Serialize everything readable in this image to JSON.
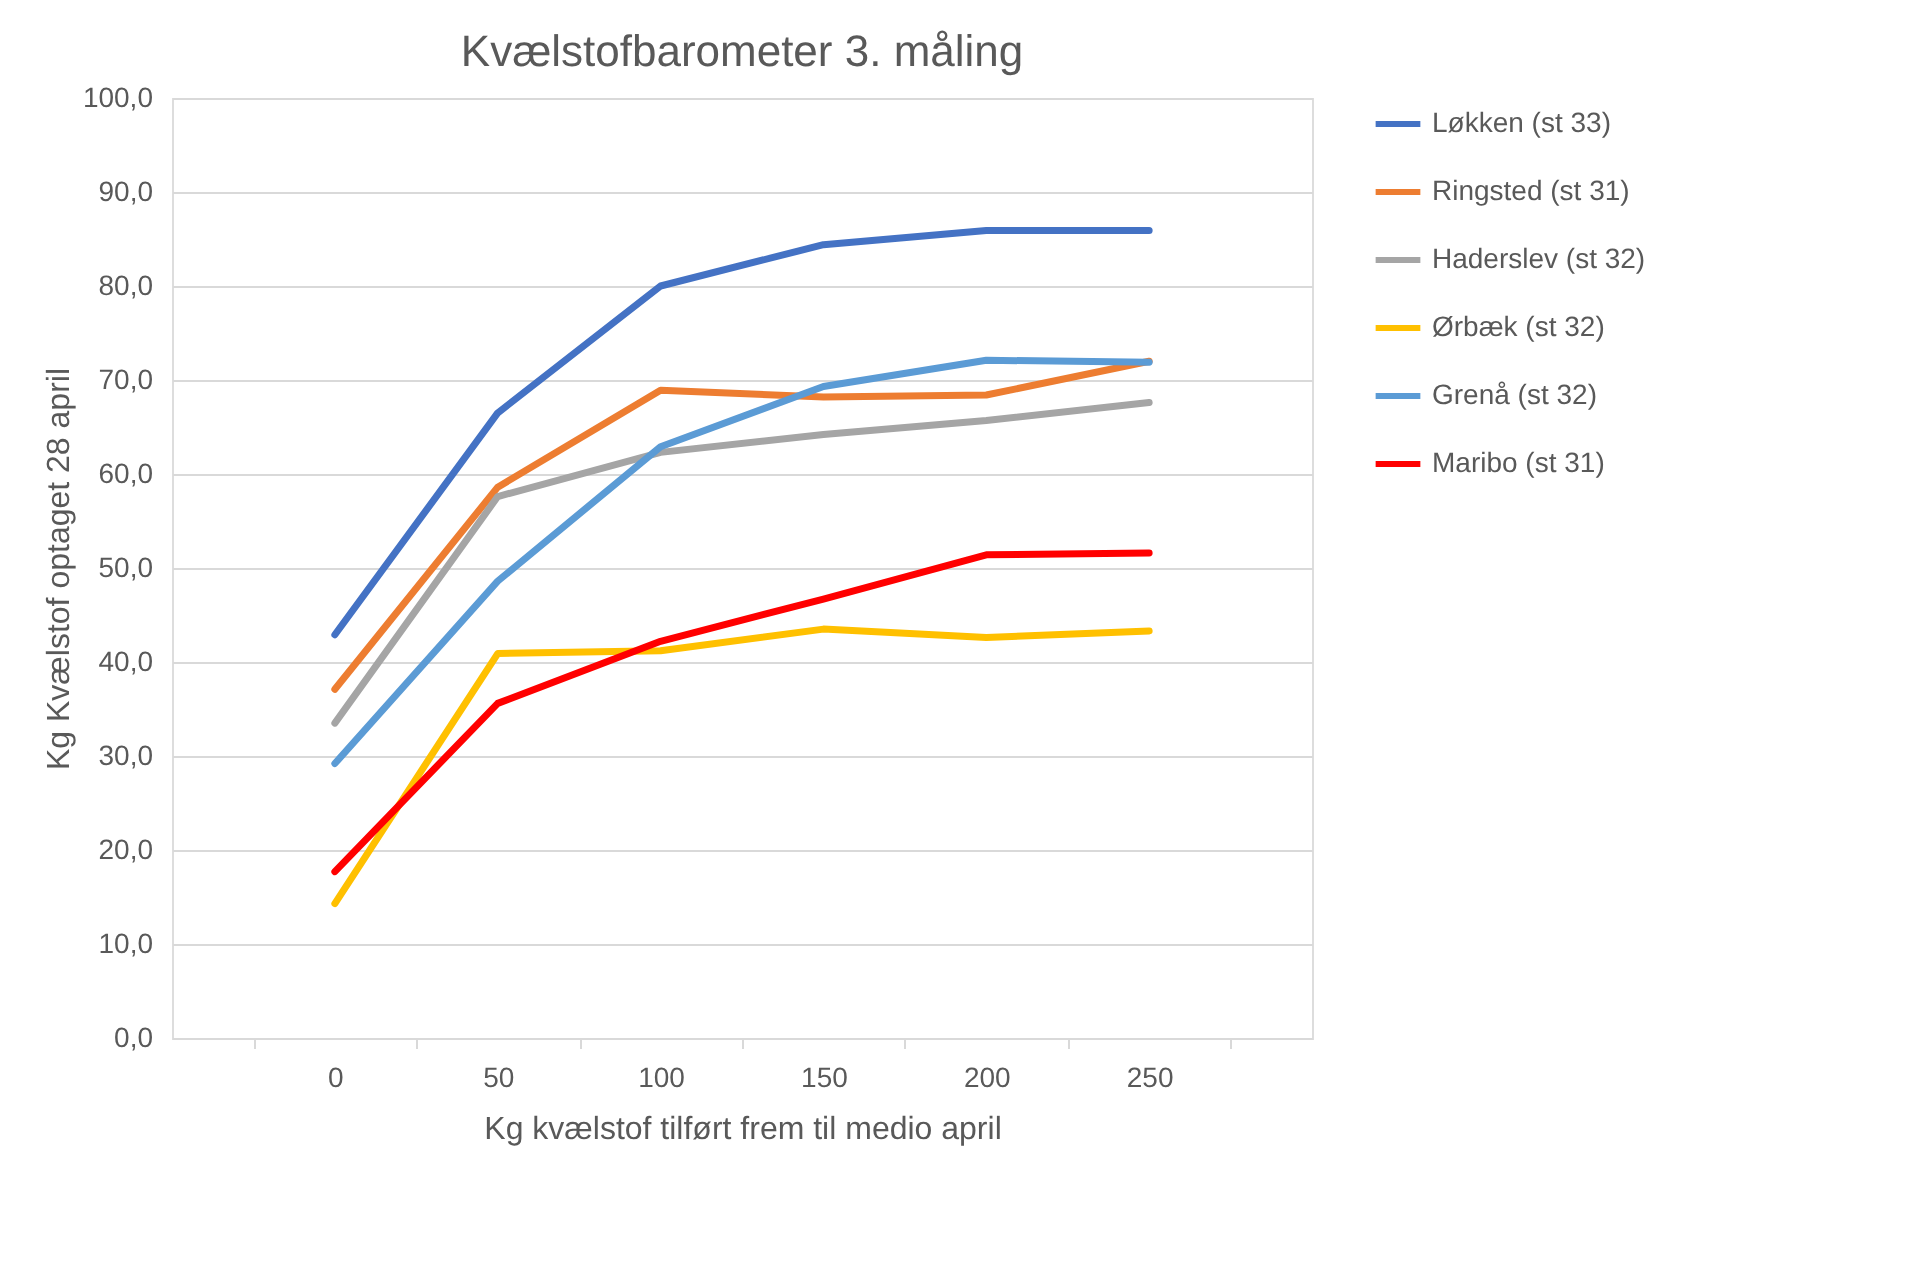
{
  "chart_data": {
    "type": "line",
    "title": "Kvælstofbarometer 3. måling",
    "xlabel": "Kg kvælstof tilført frem til medio april",
    "ylabel": "Kg Kvælstof optaget 28 april",
    "categories": [
      "0",
      "50",
      "100",
      "150",
      "200",
      "250"
    ],
    "series": [
      {
        "name": "Løkken (st 33)",
        "color": "#4472c4",
        "values": [
          42.9,
          66.5,
          80.0,
          84.4,
          85.9,
          85.9
        ]
      },
      {
        "name": "Ringsted (st 31)",
        "color": "#ed7d31",
        "values": [
          37.1,
          58.6,
          68.9,
          68.2,
          68.4,
          72.0
        ]
      },
      {
        "name": "Haderslev (st 32)",
        "color": "#a5a5a5",
        "values": [
          33.5,
          57.6,
          62.3,
          64.2,
          65.7,
          67.6
        ]
      },
      {
        "name": "Ørbæk (st 32)",
        "color": "#ffc000",
        "values": [
          14.3,
          40.9,
          41.2,
          43.5,
          42.6,
          43.3
        ]
      },
      {
        "name": "Grenå (st 32)",
        "color": "#5b9bd5",
        "values": [
          29.2,
          48.6,
          62.9,
          69.3,
          72.1,
          71.9
        ]
      },
      {
        "name": "Maribo (st 31)",
        "color": "#ff0000",
        "values": [
          17.7,
          35.6,
          42.2,
          46.7,
          51.4,
          51.6
        ]
      }
    ],
    "ylim": [
      0,
      100
    ],
    "yticks": [
      {
        "value": 0,
        "label": "0,0"
      },
      {
        "value": 10,
        "label": "10,0"
      },
      {
        "value": 20,
        "label": "20,0"
      },
      {
        "value": 30,
        "label": "30,0"
      },
      {
        "value": 40,
        "label": "40,0"
      },
      {
        "value": 50,
        "label": "50,0"
      },
      {
        "value": 60,
        "label": "60,0"
      },
      {
        "value": 70,
        "label": "70,0"
      },
      {
        "value": 80,
        "label": "80,0"
      },
      {
        "value": 90,
        "label": "90,0"
      },
      {
        "value": 100,
        "label": "100,0"
      }
    ],
    "grid": "y",
    "legend": "right",
    "marker": "none",
    "line_style": "solid"
  }
}
